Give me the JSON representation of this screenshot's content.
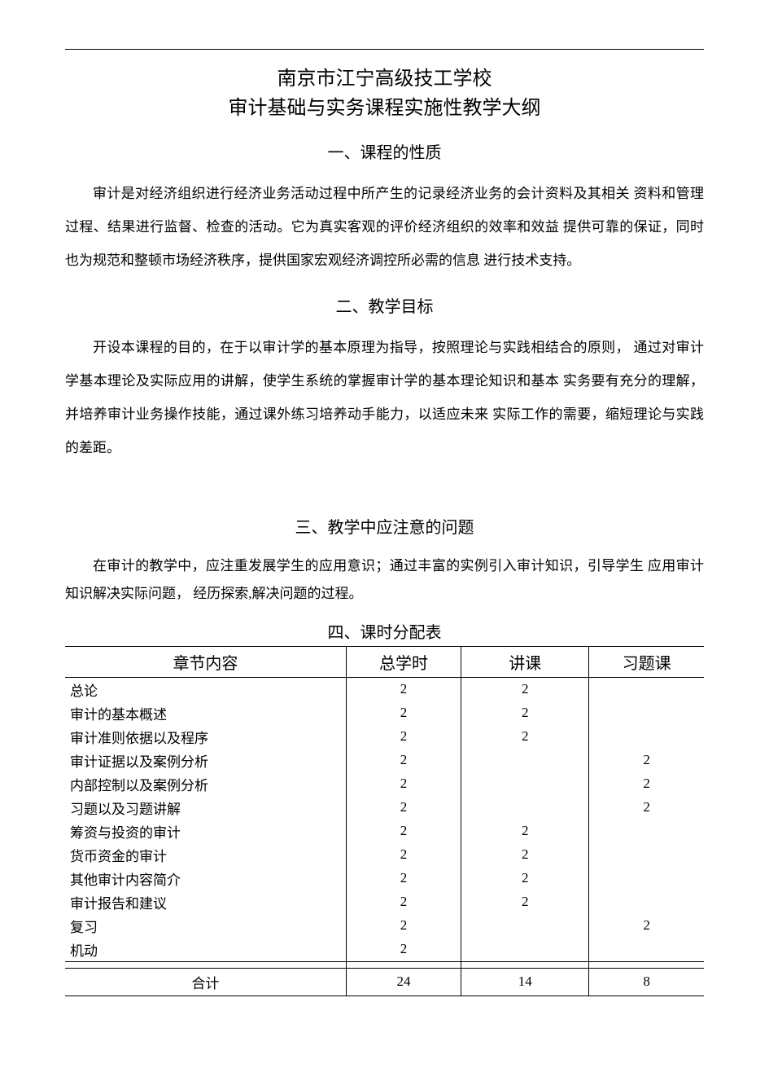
{
  "title_line1": "南京市江宁高级技工学校",
  "title_line2": "审计基础与实务课程实施性教学大纲",
  "section1": {
    "heading": "一、课程的性质",
    "para": "审计是对经济组织进行经济业务活动过程中所产生的记录经济业务的会计资料及其相关 资料和管理过程、结果进行监督、检查的活动。它为真实客观的评价经济组织的效率和效益  提供可靠的保证，同时也为规范和整顿市场经济秩序，提供国家宏观经济调控所必需的信息 进行技术支持。"
  },
  "section2": {
    "heading": "二、教学目标",
    "para": "开设本课程的目的，在于以审计学的基本原理为指导，按照理论与实践相结合的原则，  通过对审计学基本理论及实际应用的讲解，使学生系统的掌握审计学的基本理论知识和基本  实务要有充分的理解，并培养审计业务操作技能，通过课外练习培养动手能力，以适应未来  实际工作的需要，缩短理论与实践的差距。"
  },
  "section3": {
    "heading": "三、教学中应注意的问题",
    "para": "在审计的教学中，应注重发展学生的应用意识；通过丰富的实例引入审计知识，引导学生 应用审计知识解决实际问题， 经历探索,解决问题的过程。"
  },
  "section4": {
    "heading": "四、课时分配表",
    "columns": [
      "章节内容",
      "总学时",
      "讲课",
      "习题课"
    ],
    "rows": [
      {
        "chapter": "总论",
        "total": "2",
        "lecture": "2",
        "exercise": ""
      },
      {
        "chapter": "审计的基本概述",
        "total": "2",
        "lecture": "2",
        "exercise": ""
      },
      {
        "chapter": "审计准则依据以及程序",
        "total": "2",
        "lecture": "2",
        "exercise": ""
      },
      {
        "chapter": "审计证据以及案例分析",
        "total": "2",
        "lecture": "",
        "exercise": "2"
      },
      {
        "chapter": "内部控制以及案例分析",
        "total": "2",
        "lecture": "",
        "exercise": "2"
      },
      {
        "chapter": "习题以及习题讲解",
        "total": "2",
        "lecture": "",
        "exercise": "2"
      },
      {
        "chapter": "筹资与投资的审计",
        "total": "2",
        "lecture": "2",
        "exercise": ""
      },
      {
        "chapter": "货币资金的审计",
        "total": "2",
        "lecture": "2",
        "exercise": ""
      },
      {
        "chapter": "其他审计内容简介",
        "total": "2",
        "lecture": "2",
        "exercise": ""
      },
      {
        "chapter": "审计报告和建议",
        "total": "2",
        "lecture": "2",
        "exercise": ""
      },
      {
        "chapter": "复习",
        "total": "2",
        "lecture": "",
        "exercise": "2"
      },
      {
        "chapter": "机动",
        "total": "2",
        "lecture": "",
        "exercise": ""
      }
    ],
    "total_row": {
      "label": "合计",
      "total": "24",
      "lecture": "14",
      "exercise": "8"
    }
  }
}
